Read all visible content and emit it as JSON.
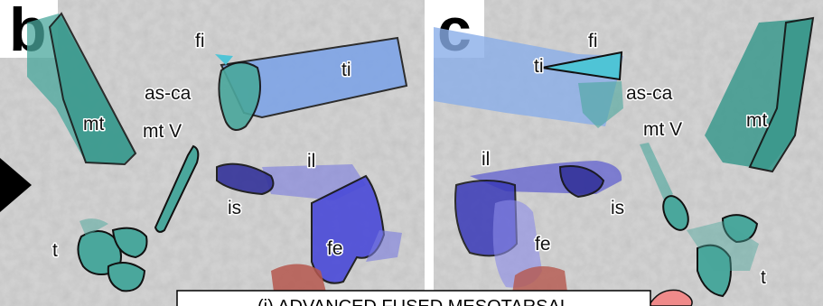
{
  "panels": [
    {
      "letter": "b",
      "labels": [
        "fi",
        "ti",
        "as-ca",
        "mt",
        "mt V",
        "il",
        "is",
        "fe",
        "t"
      ]
    },
    {
      "letter": "c",
      "labels": [
        "fi",
        "ti",
        "as-ca",
        "mt",
        "mt V",
        "il",
        "is",
        "fe",
        "t"
      ]
    }
  ],
  "caption": "(i) ADVANCED FUSED MESOTARSAL"
}
